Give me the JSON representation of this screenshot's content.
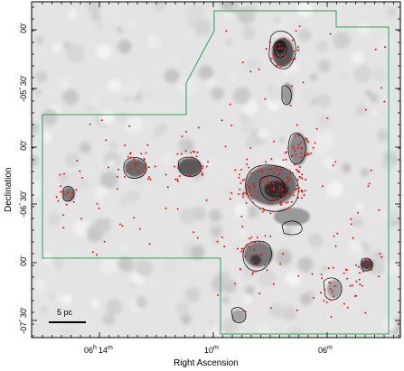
{
  "axes": {
    "xlabel": "Right Ascension",
    "ylabel": "Declination",
    "x_ticks": [
      {
        "major": "06",
        "unit": "h",
        "minor": "14",
        "sub": "m"
      },
      {
        "major": "",
        "unit": "",
        "minor": "10",
        "sub": "m"
      },
      {
        "major": "",
        "unit": "",
        "minor": "06",
        "sub": "m"
      }
    ],
    "y_ticks": [
      {
        "deg": "",
        "sign": "",
        "min": "00'"
      },
      {
        "deg": "-05",
        "sign": "°",
        "min": "30'"
      },
      {
        "deg": "",
        "sign": "",
        "min": "00'"
      },
      {
        "deg": "-06",
        "sign": "°",
        "min": "30'"
      },
      {
        "deg": "",
        "sign": "",
        "min": "00'"
      },
      {
        "deg": "-07",
        "sign": "°",
        "min": "30'"
      }
    ]
  },
  "scalebar": {
    "label": "5 pc"
  },
  "colors": {
    "survey_boundary": "#2ca45a",
    "source_dots": "#e8141b",
    "contours": "#000000",
    "background_gray": "#d6d6d6"
  }
}
